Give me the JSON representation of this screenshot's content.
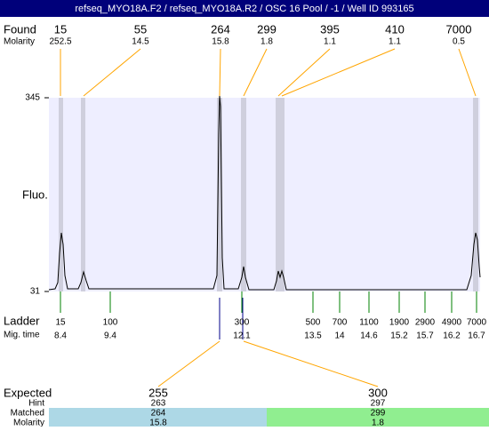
{
  "title": "refseq_MYO18A.F2 / refseq_MYO18A.R2 / OSC 16 Pool / -1 / Well ID 993165",
  "found": {
    "label": "Found",
    "molarity_label": "Molarity",
    "peaks": [
      {
        "size": 15,
        "molarity": 252.5
      },
      {
        "size": 55,
        "molarity": 14.5
      },
      {
        "size": 264,
        "molarity": 15.8
      },
      {
        "size": 299,
        "molarity": 1.8
      },
      {
        "size": 395,
        "molarity": 1.1
      },
      {
        "size": 410,
        "molarity": 1.1
      },
      {
        "size": 7000,
        "molarity": 0.5
      }
    ]
  },
  "plot": {
    "y_label": "Fluo.",
    "ylim": [
      31,
      345
    ],
    "yticks": [
      31,
      345
    ]
  },
  "ladder": {
    "label": "Ladder",
    "mig_label": "Mig. time",
    "markers": [
      {
        "size": 15,
        "time": 8.4
      },
      {
        "size": 100,
        "time": 9.4
      },
      {
        "size": 300,
        "time": 12.1
      },
      {
        "size": 500,
        "time": 13.5
      },
      {
        "size": 700,
        "time": 14
      },
      {
        "size": 1100,
        "time": 14.6
      },
      {
        "size": 1900,
        "time": 15.2
      },
      {
        "size": 2900,
        "time": 15.7
      },
      {
        "size": 4900,
        "time": 16.2
      },
      {
        "size": 7000,
        "time": 16.7
      }
    ]
  },
  "expected": {
    "label": "Expected",
    "hint_label": "Hint",
    "matched_label": "Matched",
    "molarity_label": "Molarity",
    "items": [
      {
        "size": 255,
        "hint": 263,
        "matched": 264,
        "molarity": 15.8
      },
      {
        "size": 300,
        "hint": 297,
        "matched": 299,
        "molarity": 1.8
      }
    ]
  }
}
